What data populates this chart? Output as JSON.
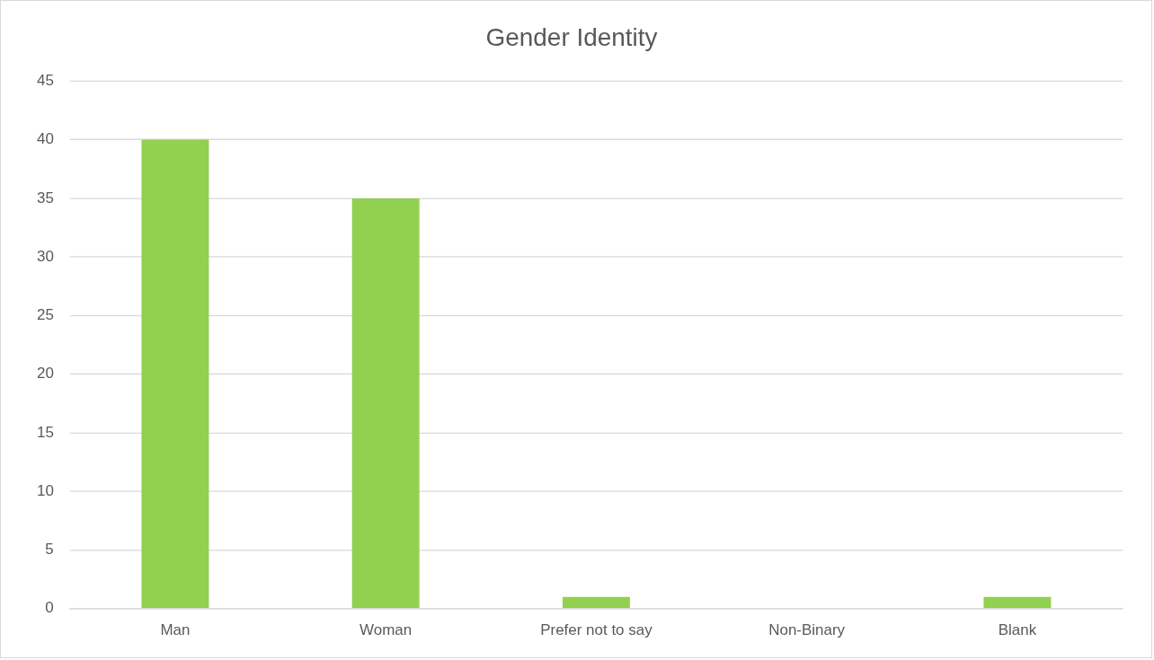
{
  "chart_data": {
    "type": "bar",
    "title": "Gender Identity",
    "categories": [
      "Man",
      "Woman",
      "Prefer not to say",
      "Non-Binary",
      "Blank"
    ],
    "values": [
      40,
      35,
      1,
      0,
      1
    ],
    "color": "#92d050",
    "ylim": [
      0,
      45
    ],
    "yticks": [
      0,
      5,
      10,
      15,
      20,
      25,
      30,
      35,
      40,
      45
    ],
    "grid": "y",
    "legend": false
  }
}
